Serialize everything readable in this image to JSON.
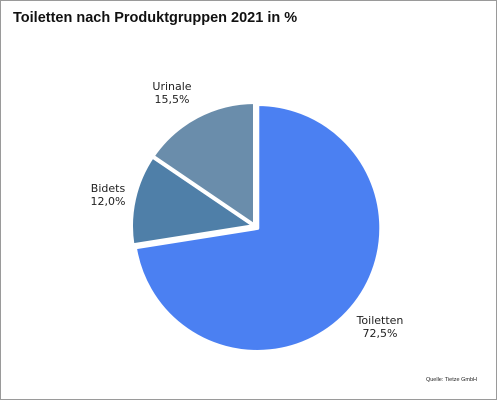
{
  "chart_data": {
    "type": "pie",
    "title": "Toiletten nach Produktgruppen 2021 in %",
    "slices": [
      {
        "name": "Toiletten",
        "value": 72.5,
        "value_label": "72,5%",
        "color": "#4b80f2"
      },
      {
        "name": "Bidets",
        "value": 12.0,
        "value_label": "12,0%",
        "color": "#4f7fa8"
      },
      {
        "name": "Urinale",
        "value": 15.5,
        "value_label": "15,5%",
        "color": "#6a8dab"
      }
    ],
    "explode": "Toiletten",
    "legend": "none",
    "source": "Quelle: Tietze GmbH"
  }
}
